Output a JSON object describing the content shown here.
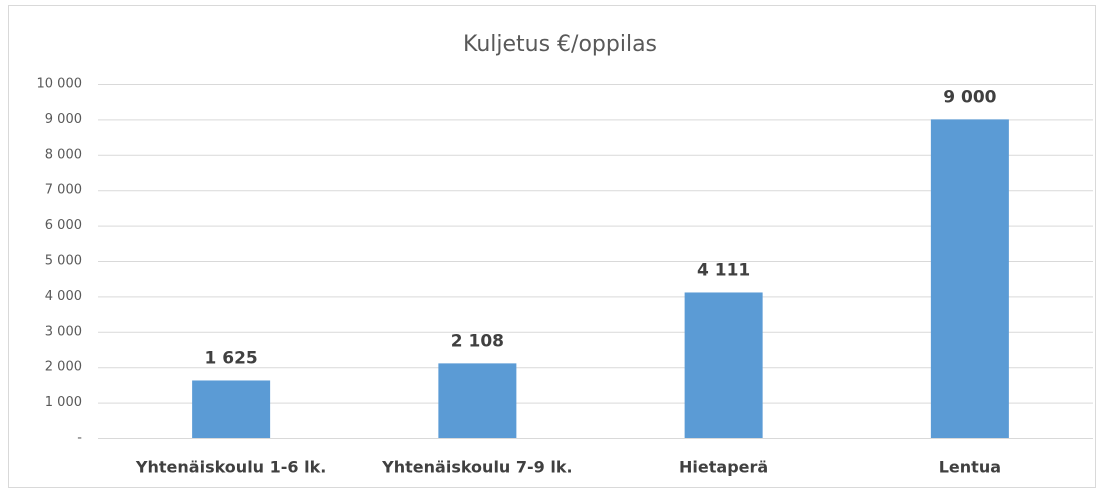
{
  "chart_data": {
    "type": "bar",
    "title": "Kuljetus €/oppilas",
    "categories": [
      "Yhtenäiskoulu 1-6 lk.",
      "Yhtenäiskoulu 7-9 lk.",
      "Hietaperä",
      "Lentua"
    ],
    "values": [
      1625,
      2108,
      4111,
      9000
    ],
    "value_labels": [
      "1 625",
      "2 108",
      "4 111",
      "9 000"
    ],
    "color": "#5b9bd5",
    "ylim": [
      0,
      10000
    ],
    "yticks": [
      {
        "value": 0,
        "label": "-"
      },
      {
        "value": 1000,
        "label": "1 000"
      },
      {
        "value": 2000,
        "label": "2 000"
      },
      {
        "value": 3000,
        "label": "3 000"
      },
      {
        "value": 4000,
        "label": "4 000"
      },
      {
        "value": 5000,
        "label": "5 000"
      },
      {
        "value": 6000,
        "label": "6 000"
      },
      {
        "value": 7000,
        "label": "7 000"
      },
      {
        "value": 8000,
        "label": "8 000"
      },
      {
        "value": 9000,
        "label": "9 000"
      },
      {
        "value": 10000,
        "label": "10 000"
      }
    ],
    "grid": true
  }
}
